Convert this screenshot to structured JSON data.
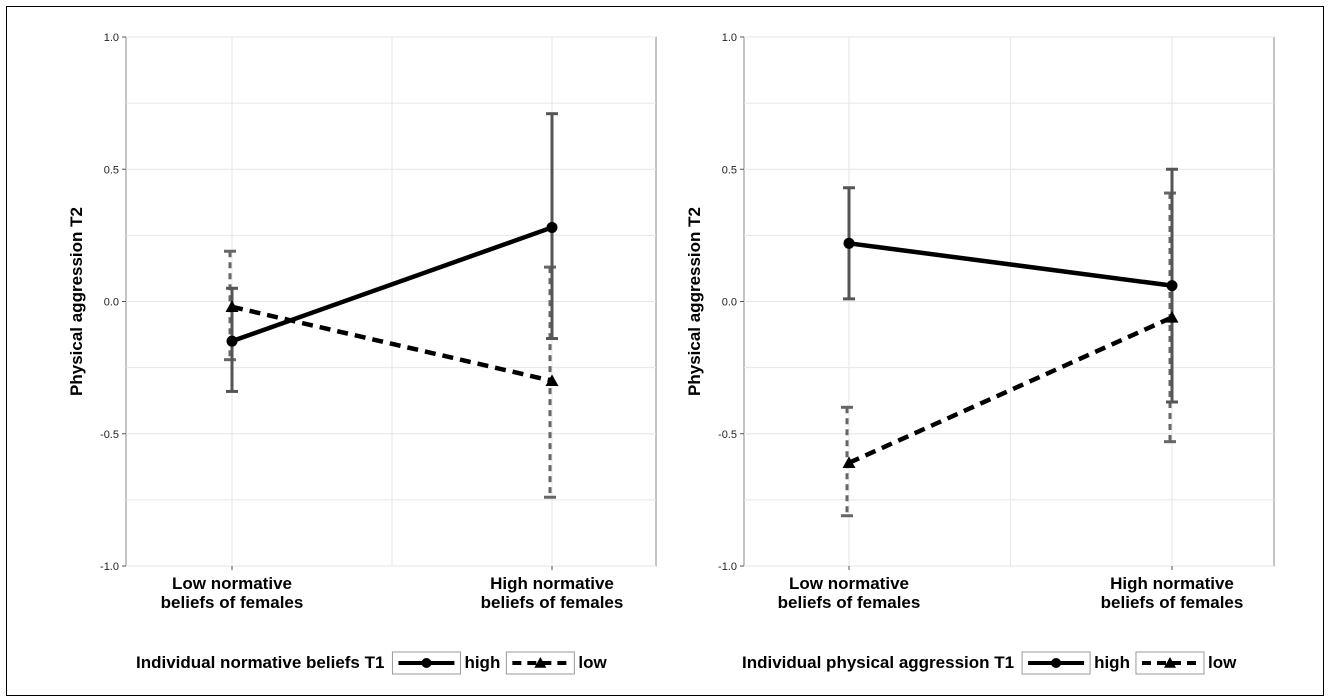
{
  "chart_data": [
    {
      "type": "line",
      "ylabel": "Physical aggression T2",
      "xlabel": "",
      "ylim": [
        -1.0,
        1.0
      ],
      "yticks": [
        "1.0",
        "0.5",
        "0.0",
        "-0.5",
        "-1.0"
      ],
      "categories": [
        [
          "Low normative",
          "beliefs of females"
        ],
        [
          "High normative",
          "beliefs of females"
        ]
      ],
      "grid": true,
      "legend": {
        "title": "Individual normative beliefs T1",
        "placement": "bottom"
      },
      "series": [
        {
          "name": "high",
          "marker": "circle",
          "dashed": false,
          "values": [
            -0.15,
            0.28
          ],
          "lower": [
            -0.34,
            -0.14
          ],
          "upper": [
            0.05,
            0.71
          ]
        },
        {
          "name": "low",
          "marker": "triangle",
          "dashed": true,
          "values": [
            -0.02,
            -0.3
          ],
          "lower": [
            -0.22,
            -0.74
          ],
          "upper": [
            0.19,
            0.13
          ]
        }
      ]
    },
    {
      "type": "line",
      "ylabel": "Physical aggression T2",
      "xlabel": "",
      "ylim": [
        -1.0,
        1.0
      ],
      "yticks": [
        "1.0",
        "0.5",
        "0.0",
        "-0.5",
        "-1.0"
      ],
      "categories": [
        [
          "Low normative",
          "beliefs of females"
        ],
        [
          "High normative",
          "beliefs of females"
        ]
      ],
      "grid": true,
      "legend": {
        "title": "Individual physical aggression T1",
        "placement": "bottom"
      },
      "series": [
        {
          "name": "high",
          "marker": "circle",
          "dashed": false,
          "values": [
            0.22,
            0.06
          ],
          "lower": [
            0.01,
            -0.38
          ],
          "upper": [
            0.43,
            0.5
          ]
        },
        {
          "name": "low",
          "marker": "triangle",
          "dashed": true,
          "values": [
            -0.61,
            -0.06
          ],
          "lower": [
            -0.81,
            -0.53
          ],
          "upper": [
            -0.4,
            0.41
          ]
        }
      ]
    }
  ]
}
